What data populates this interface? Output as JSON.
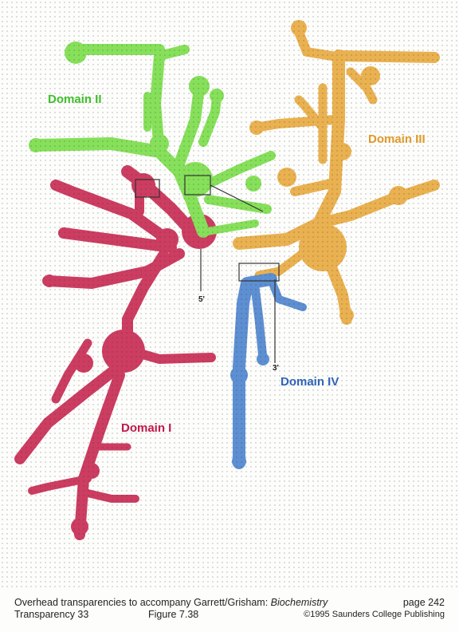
{
  "diagram": {
    "labels": {
      "domain1": "Domain I",
      "domain2": "Domain II",
      "domain3": "Domain III",
      "domain4": "Domain IV",
      "five_prime": "5'",
      "three_prime": "3'"
    },
    "colors": {
      "domain1": "#cc3d61",
      "domain2": "#86e05a",
      "domain3": "#eab150",
      "domain4": "#5d8fd2",
      "label1": "#c0194a",
      "label2": "#3fbf2a",
      "label3": "#e09a2a",
      "label4": "#2f63b8"
    }
  },
  "footer": {
    "caption_prefix": "Overhead transparencies to accompany Garrett/Grisham: ",
    "caption_title": "Biochemistry",
    "page": "page 242",
    "transparency": "Transparency 33",
    "figure": "Figure 7.38",
    "copyright": "©1995 Saunders College Publishing"
  }
}
